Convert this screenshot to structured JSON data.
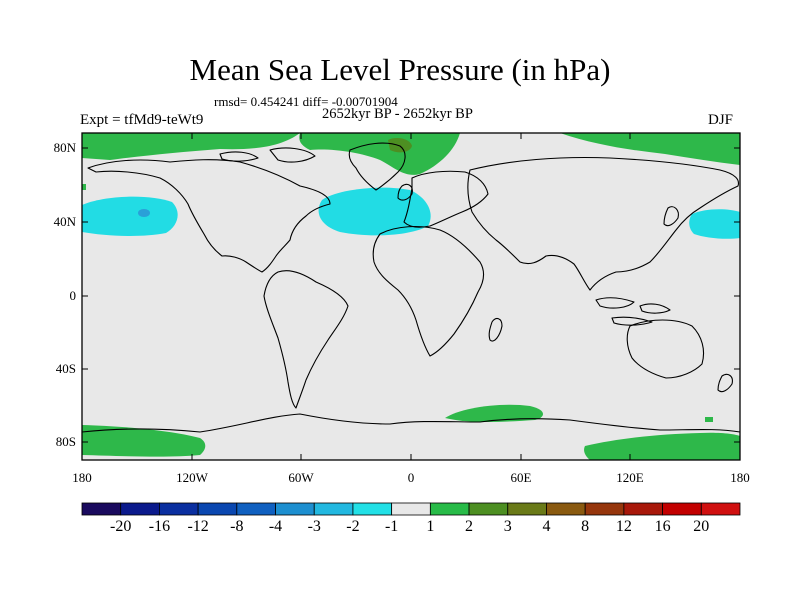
{
  "title": "Mean Sea Level Pressure (in hPa)",
  "stats": "rmsd= 0.454241 diff= -0.00701904",
  "period": "2652kyr BP - 2652kyr BP",
  "experiment": "Expt = tfMd9-teWt9",
  "season": "DJF",
  "lat_labels": [
    "80N",
    "40N",
    "0",
    "40S",
    "80S"
  ],
  "lon_labels": [
    "180",
    "120W",
    "60W",
    "0",
    "60E",
    "120E",
    "180"
  ],
  "colorbar": {
    "labels": [
      "-20",
      "-16",
      "-12",
      "-8",
      "-4",
      "-3",
      "-2",
      "-1",
      "1",
      "2",
      "3",
      "4",
      "8",
      "12",
      "16",
      "20"
    ],
    "colors": [
      "#1a0a5e",
      "#0b1a8c",
      "#0a2fa0",
      "#0a47b0",
      "#1060c0",
      "#1d8fd0",
      "#22b8e0",
      "#22e0e6",
      "#e8e8e8",
      "#28bb48",
      "#4d8f22",
      "#6a7a18",
      "#8a5a10",
      "#96360c",
      "#a8180a",
      "#c20000",
      "#d01010"
    ]
  },
  "map_colors": {
    "background": "#e8e8e8",
    "positive": "#2eb84a",
    "positive_strong": "#4d8f22",
    "negative": "#22dce4",
    "negative_strong": "#2aa0d8"
  }
}
